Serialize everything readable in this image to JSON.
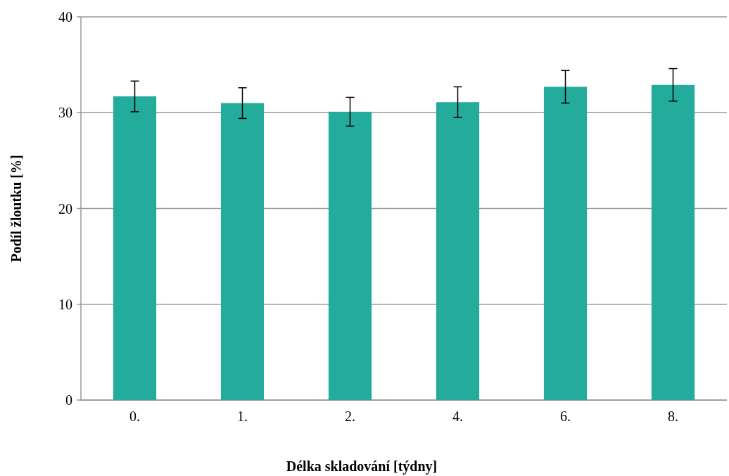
{
  "chart_data": {
    "type": "bar",
    "xlabel": "Délka skladování [týdny]",
    "ylabel": "Podíl žloutku [%]",
    "categories": [
      "0.",
      "1.",
      "2.",
      "4.",
      "6.",
      "8."
    ],
    "values": [
      31.7,
      31.0,
      30.1,
      31.1,
      32.7,
      32.9
    ],
    "errors": [
      1.6,
      1.6,
      1.5,
      1.6,
      1.7,
      1.7
    ],
    "color": "#23ac9c",
    "ylim": [
      0,
      40
    ],
    "yticks": [
      0,
      10,
      20,
      30,
      40
    ],
    "grid": "y"
  }
}
